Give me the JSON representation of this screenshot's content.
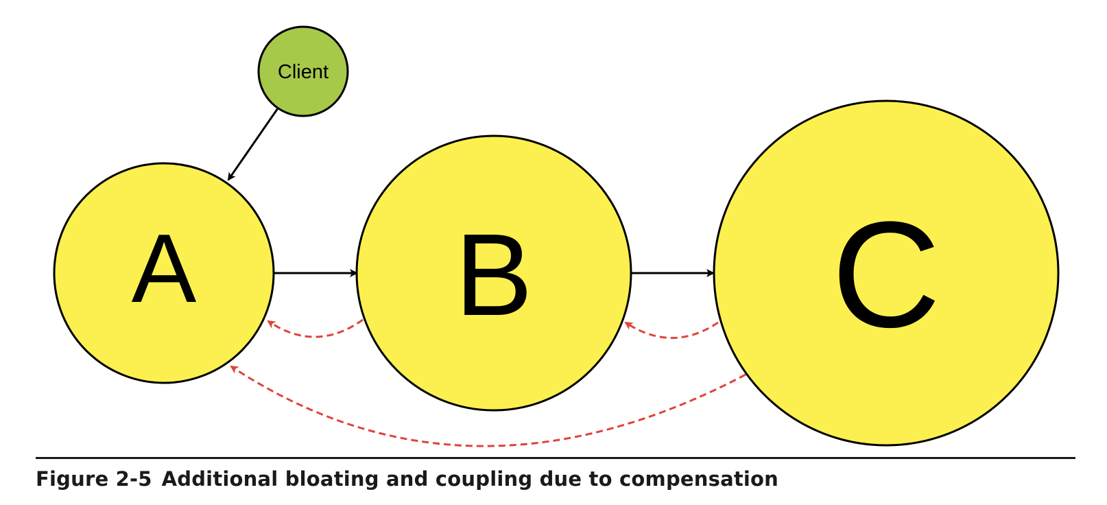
{
  "diagram": {
    "nodes": {
      "client": {
        "label": "Client"
      },
      "a": {
        "label": "A"
      },
      "b": {
        "label": "B"
      },
      "c": {
        "label": "C"
      }
    },
    "edges": [
      {
        "from": "Client",
        "to": "A",
        "style": "solid"
      },
      {
        "from": "A",
        "to": "B",
        "style": "solid"
      },
      {
        "from": "B",
        "to": "C",
        "style": "solid"
      },
      {
        "from": "B",
        "to": "A",
        "style": "dashed"
      },
      {
        "from": "C",
        "to": "B",
        "style": "dashed"
      },
      {
        "from": "C",
        "to": "A",
        "style": "dashed"
      }
    ]
  },
  "colors": {
    "service_fill": "#fcf050",
    "client_fill": "#a6c94a",
    "solid_edge": "#000000",
    "compensation_edge": "#e0433a"
  },
  "caption": {
    "figure_number": "Figure 2-5",
    "text": "Additional bloating and coupling due to compensation"
  }
}
